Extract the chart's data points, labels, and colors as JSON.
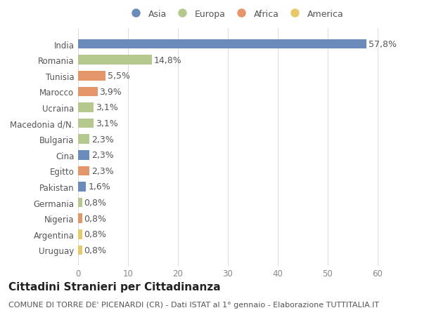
{
  "categories": [
    "India",
    "Romania",
    "Tunisia",
    "Marocco",
    "Ucraina",
    "Macedonia d/N.",
    "Bulgaria",
    "Cina",
    "Egitto",
    "Pakistan",
    "Germania",
    "Nigeria",
    "Argentina",
    "Uruguay"
  ],
  "values": [
    57.8,
    14.8,
    5.5,
    3.9,
    3.1,
    3.1,
    2.3,
    2.3,
    2.3,
    1.6,
    0.8,
    0.8,
    0.8,
    0.8
  ],
  "labels": [
    "57,8%",
    "14,8%",
    "5,5%",
    "3,9%",
    "3,1%",
    "3,1%",
    "2,3%",
    "2,3%",
    "2,3%",
    "1,6%",
    "0,8%",
    "0,8%",
    "0,8%",
    "0,8%"
  ],
  "continents": [
    "Asia",
    "Europa",
    "Africa",
    "Africa",
    "Europa",
    "Europa",
    "Europa",
    "Asia",
    "Africa",
    "Asia",
    "Europa",
    "Africa",
    "America",
    "America"
  ],
  "colors": {
    "Asia": "#6b8cba",
    "Europa": "#b5c98e",
    "Africa": "#e5956a",
    "America": "#e8c96a"
  },
  "legend_order": [
    "Asia",
    "Europa",
    "Africa",
    "America"
  ],
  "title": "Cittadini Stranieri per Cittadinanza",
  "subtitle": "COMUNE DI TORRE DE' PICENARDI (CR) - Dati ISTAT al 1° gennaio - Elaborazione TUTTITALIA.IT",
  "xlim": [
    0,
    63
  ],
  "xticks": [
    0,
    10,
    20,
    30,
    40,
    50,
    60
  ],
  "background_color": "#ffffff",
  "plot_background": "#ffffff",
  "grid_color": "#dddddd",
  "bar_height": 0.6,
  "label_fontsize": 9,
  "tick_fontsize": 8.5,
  "title_fontsize": 11,
  "subtitle_fontsize": 8
}
